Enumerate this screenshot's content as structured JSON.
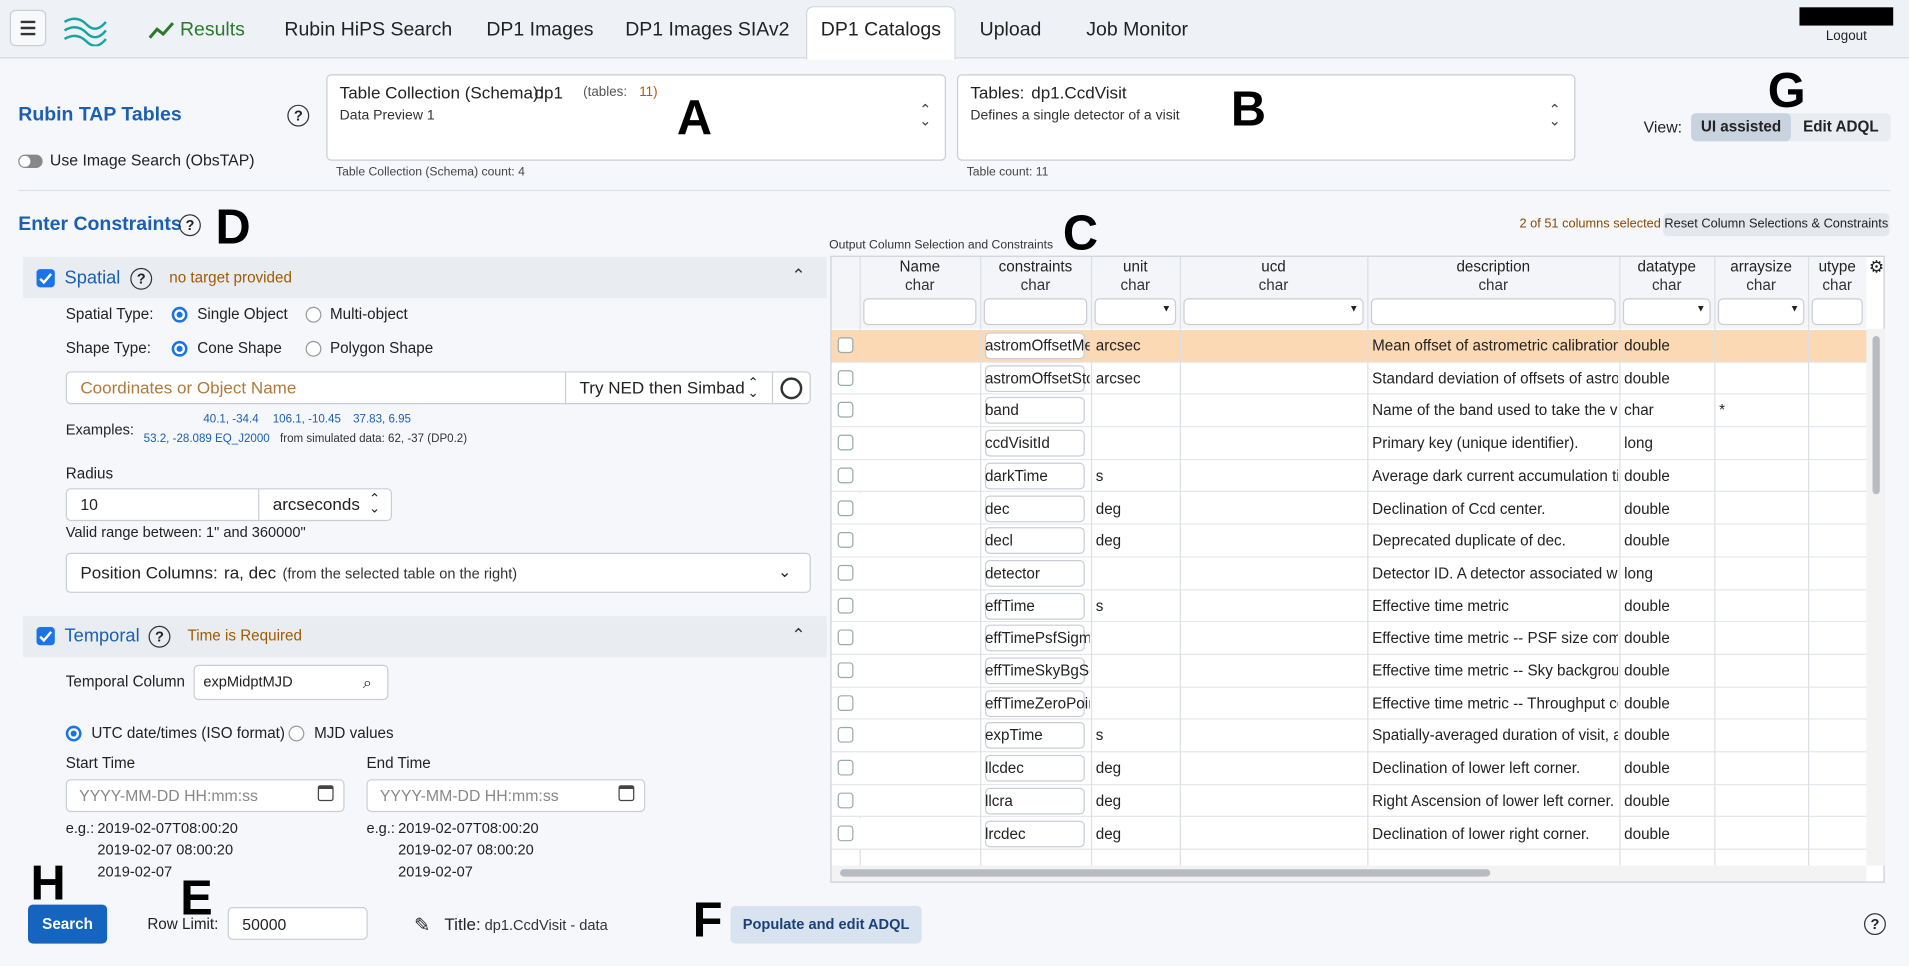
{
  "nav": {
    "tabs": [
      "Results",
      "Rubin HiPS Search",
      "DP1 Images",
      "DP1 Images SIAv2",
      "DP1 Catalogs",
      "Upload",
      "Job Monitor"
    ],
    "logout": "Logout"
  },
  "annotations": [
    "A",
    "B",
    "C",
    "D",
    "E",
    "F",
    "G",
    "H"
  ],
  "header": {
    "title": "Rubin TAP Tables",
    "obstap": "Use Image Search (ObsTAP)",
    "schema": {
      "label": "Table Collection (Schema):",
      "value": "dp1",
      "count_label": "(tables:",
      "count": "11)",
      "description": "Data Preview 1",
      "footer": "Table Collection (Schema) count: 4"
    },
    "table": {
      "label": "Tables:",
      "value": "dp1.CcdVisit",
      "description": "Defines a single detector of a visit",
      "footer": "Table count: 11"
    },
    "view": {
      "label": "View:",
      "options": [
        "UI assisted",
        "Edit ADQL"
      ]
    }
  },
  "constraints": {
    "title": "Enter Constraints",
    "spatial": {
      "title": "Spatial",
      "status": "no target provided",
      "spatial_type": "Spatial Type:",
      "spatial_options": [
        "Single Object",
        "Multi-object"
      ],
      "shape_type": "Shape Type:",
      "shape_options": [
        "Cone Shape",
        "Polygon Shape"
      ],
      "placeholder": "Coordinates or Object Name",
      "resolver": "Try NED then Simbad",
      "examples_label": "Examples:",
      "examples": [
        "40.1, -34.4",
        "106.1, -10.45",
        "37.83, 6.95",
        "53.2, -28.089 EQ_J2000"
      ],
      "examples_note": "from simulated data: 62, -37 (DP0.2)",
      "radius_label": "Radius",
      "radius": "10",
      "radius_unit": "arcseconds",
      "valid_range": "Valid range between: 1\" and 360000\"",
      "position_label": "Position Columns:",
      "position_value": "ra, dec",
      "position_note": "(from the selected table on the right)"
    },
    "temporal": {
      "title": "Temporal",
      "status": "Time is Required",
      "column_label": "Temporal Column",
      "column": "expMidptMJD",
      "formats": [
        "UTC date/times (ISO format)",
        "MJD values"
      ],
      "start": {
        "label": "Start Time",
        "placeholder": "YYYY-MM-DD HH:mm:ss",
        "eg": "e.g.:",
        "examples": [
          "2019-02-07T08:00:20",
          "2019-02-07 08:00:20",
          "2019-02-07"
        ]
      },
      "end": {
        "label": "End Time",
        "placeholder": "YYYY-MM-DD HH:mm:ss",
        "eg": "e.g.:",
        "examples": [
          "2019-02-07T08:00:20",
          "2019-02-07 08:00:20",
          "2019-02-07"
        ]
      }
    }
  },
  "output": {
    "title": "Output Column Selection and Constraints",
    "selected": "2 of 51 columns selected",
    "reset": "Reset Column Selections & Constraints",
    "columns": [
      {
        "name": "Name",
        "type": "char"
      },
      {
        "name": "constraints",
        "type": "char"
      },
      {
        "name": "unit",
        "type": "char"
      },
      {
        "name": "ucd",
        "type": "char"
      },
      {
        "name": "description",
        "type": "char"
      },
      {
        "name": "datatype",
        "type": "char"
      },
      {
        "name": "arraysize",
        "type": "char"
      },
      {
        "name": "utype",
        "type": "char"
      }
    ],
    "rows": [
      {
        "name": "astromOffsetMean",
        "unit": "arcsec",
        "description": "Mean offset of astrometric calibration m",
        "datatype": "double"
      },
      {
        "name": "astromOffsetStd",
        "unit": "arcsec",
        "description": "Standard deviation of offsets of astrome",
        "datatype": "double"
      },
      {
        "name": "band",
        "description": "Name of the band used to take the visit",
        "datatype": "char",
        "arraysize": "*"
      },
      {
        "name": "ccdVisitId",
        "description": "Primary key (unique identifier).",
        "datatype": "long"
      },
      {
        "name": "darkTime",
        "unit": "s",
        "description": "Average dark current accumulation time",
        "datatype": "double"
      },
      {
        "name": "dec",
        "unit": "deg",
        "description": "Declination of Ccd center.",
        "datatype": "double"
      },
      {
        "name": "decl",
        "unit": "deg",
        "description": "Deprecated duplicate of dec.",
        "datatype": "double"
      },
      {
        "name": "detector",
        "description": "Detector ID. A detector associated with a",
        "datatype": "long"
      },
      {
        "name": "effTime",
        "unit": "s",
        "description": "Effective time metric",
        "datatype": "double"
      },
      {
        "name": "effTimePsfSigmaS",
        "description": "Effective time metric -- PSF size compor",
        "datatype": "double"
      },
      {
        "name": "effTimeSkyBgScal",
        "description": "Effective time metric -- Sky background",
        "datatype": "double"
      },
      {
        "name": "effTimeZeroPointS",
        "description": "Effective time metric -- Throughput com",
        "datatype": "double"
      },
      {
        "name": "expTime",
        "unit": "s",
        "description": "Spatially-averaged duration of visit, acc",
        "datatype": "double"
      },
      {
        "name": "llcdec",
        "unit": "deg",
        "description": "Declination of lower left corner.",
        "datatype": "double"
      },
      {
        "name": "llcra",
        "unit": "deg",
        "description": "Right Ascension of lower left corner.",
        "datatype": "double"
      },
      {
        "name": "lrcdec",
        "unit": "deg",
        "description": "Declination of lower right corner.",
        "datatype": "double"
      }
    ]
  },
  "footer": {
    "search": "Search",
    "row_limit_label": "Row Limit:",
    "row_limit": "50000",
    "title_label": "Title:",
    "title": "dp1.CcdVisit - data",
    "populate": "Populate and edit ADQL"
  }
}
